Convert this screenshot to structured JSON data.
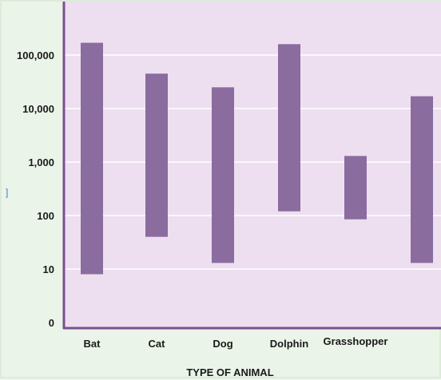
{
  "chart_data": {
    "type": "bar",
    "subtype": "floating-range",
    "title": "",
    "xlabel": "TYPE OF ANIMAL",
    "ylabel": "",
    "yscale": "log",
    "y_ticks": [
      {
        "value": 1,
        "label": "0"
      },
      {
        "value": 10,
        "label": "10"
      },
      {
        "value": 100,
        "label": "100"
      },
      {
        "value": 1000,
        "label": "1,000"
      },
      {
        "value": 10000,
        "label": "10,000"
      },
      {
        "value": 100000,
        "label": "100,000"
      }
    ],
    "ylim": [
      1,
      1000000
    ],
    "grid": true,
    "categories": [
      "Bat",
      "Cat",
      "Dog",
      "Dolphin",
      "Grasshopper",
      ""
    ],
    "ranges": [
      {
        "low": 8,
        "high": 170000
      },
      {
        "low": 40,
        "high": 45000
      },
      {
        "low": 13,
        "high": 25000
      },
      {
        "low": 120,
        "high": 160000
      },
      {
        "low": 85,
        "high": 1300
      },
      {
        "low": 13,
        "high": 17000
      }
    ],
    "colors": {
      "bar": "#8a6c9f",
      "plot_bg": "#eddff0",
      "gridline": "#ffffff",
      "axis": "#7a4f8f",
      "page_bg": "#eaf4e8"
    }
  },
  "side_marker": "]"
}
